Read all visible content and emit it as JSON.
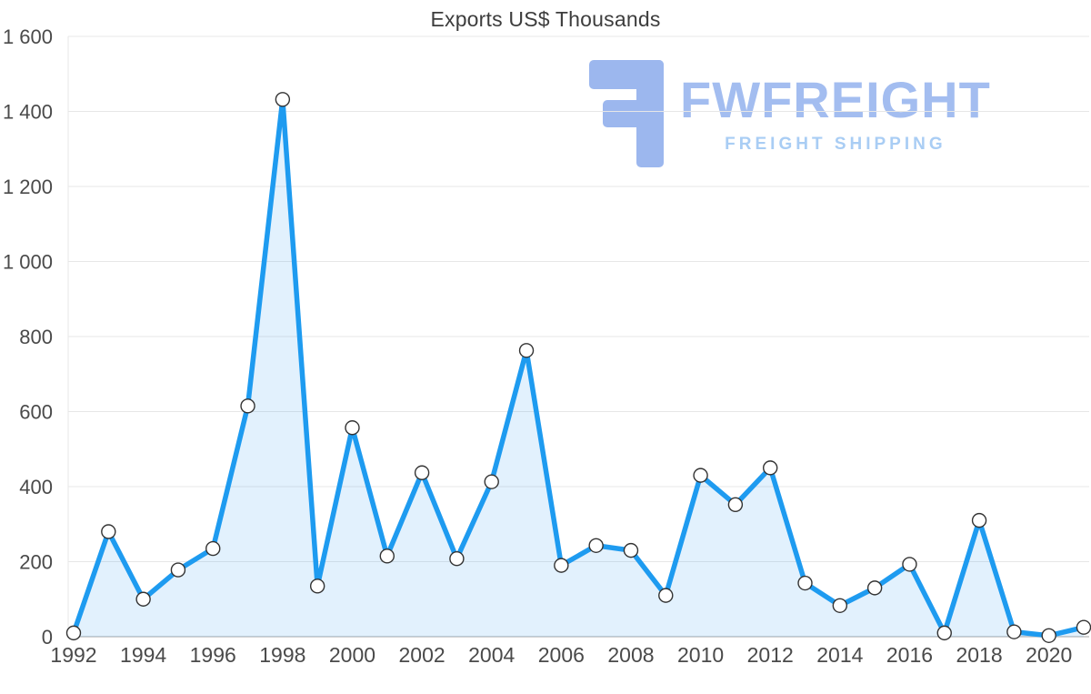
{
  "watermark": {
    "brand": "FWFREIGHT",
    "tagline": "FREIGHT SHIPPING",
    "brand_color": "#a3bdf0",
    "tagline_color": "#a9cdf4",
    "icon_color": "#9cb7ee"
  },
  "chart_data": {
    "type": "area",
    "title": "Exports US$ Thousands",
    "x": [
      1992,
      1993,
      1994,
      1995,
      1996,
      1997,
      1998,
      1999,
      2000,
      2001,
      2002,
      2003,
      2004,
      2005,
      2006,
      2007,
      2008,
      2009,
      2010,
      2011,
      2012,
      2013,
      2014,
      2015,
      2016,
      2017,
      2018,
      2019,
      2020,
      2021
    ],
    "values": [
      10,
      280,
      100,
      178,
      235,
      615,
      1432,
      135,
      557,
      215,
      437,
      208,
      413,
      763,
      190,
      243,
      230,
      110,
      430,
      352,
      450,
      143,
      83,
      130,
      193,
      10,
      310,
      13,
      3,
      25
    ],
    "ylim": [
      0,
      1600
    ],
    "yticks": [
      {
        "value": 0,
        "label": "0"
      },
      {
        "value": 200,
        "label": "200"
      },
      {
        "value": 400,
        "label": "400"
      },
      {
        "value": 600,
        "label": "600"
      },
      {
        "value": 800,
        "label": "800"
      },
      {
        "value": 1000,
        "label": "1 000"
      },
      {
        "value": 1200,
        "label": "1 200"
      },
      {
        "value": 1400,
        "label": "1 400"
      },
      {
        "value": 1600,
        "label": "1 600"
      }
    ],
    "xticks": [
      1992,
      1994,
      1996,
      1998,
      2000,
      2002,
      2004,
      2006,
      2008,
      2010,
      2012,
      2014,
      2016,
      2018,
      2020
    ],
    "grid": true,
    "legend": false,
    "xlabel": "",
    "ylabel": "",
    "line_color": "#1e9bf0",
    "fill_color": "rgba(33,150,243,0.13)",
    "point_fill": "#ffffff",
    "point_stroke": "#333333",
    "grid_color": "#e7e7e7",
    "axis_color": "#c4c4c4",
    "tick_text_color": "#4a4a4a"
  }
}
